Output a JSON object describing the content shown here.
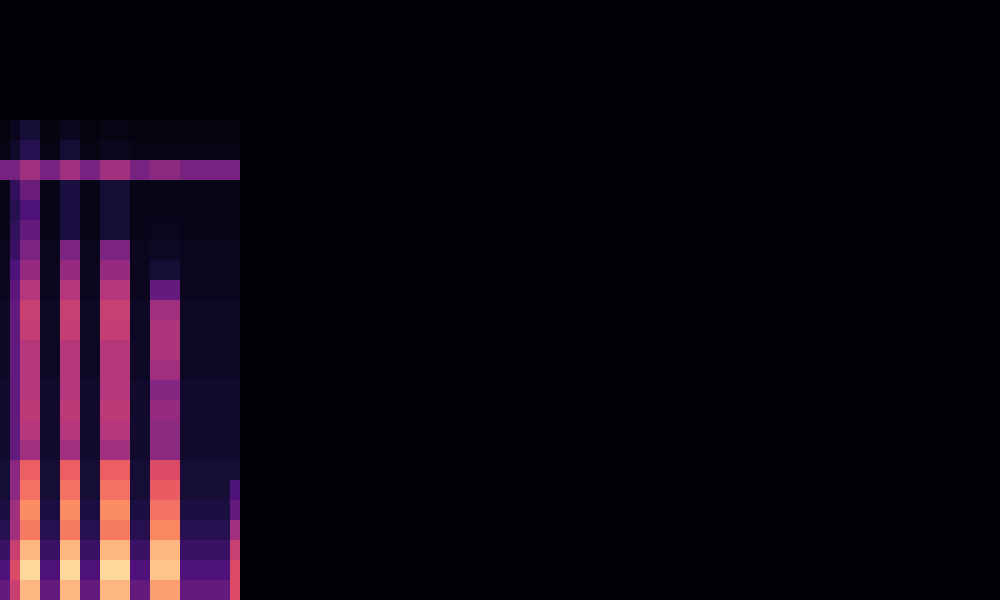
{
  "chart_data": {
    "type": "heatmap",
    "xlim": [
      0,
      100
    ],
    "ylim": [
      0,
      30
    ],
    "tick_labels": false,
    "grid": false,
    "color_range": [
      0,
      100
    ],
    "cells": [
      [
        30,
        55,
        85,
        85,
        30,
        30,
        85,
        85,
        30,
        30,
        85,
        85,
        85,
        30,
        30,
        80,
        80,
        80,
        30,
        30,
        30,
        30,
        30,
        60
      ],
      [
        25,
        60,
        92,
        92,
        25,
        25,
        92,
        92,
        25,
        25,
        92,
        92,
        92,
        25,
        25,
        88,
        88,
        88,
        25,
        25,
        25,
        25,
        25,
        60
      ],
      [
        20,
        55,
        85,
        85,
        20,
        20,
        85,
        85,
        20,
        20,
        85,
        85,
        85,
        20,
        20,
        85,
        85,
        85,
        20,
        20,
        20,
        20,
        20,
        55
      ],
      [
        15,
        45,
        72,
        72,
        15,
        15,
        72,
        72,
        15,
        15,
        72,
        72,
        72,
        15,
        15,
        75,
        75,
        75,
        15,
        15,
        15,
        15,
        15,
        45
      ],
      [
        12,
        45,
        76,
        76,
        12,
        12,
        76,
        76,
        12,
        12,
        76,
        76,
        76,
        12,
        12,
        70,
        70,
        70,
        12,
        12,
        12,
        12,
        12,
        30
      ],
      [
        10,
        40,
        70,
        70,
        10,
        10,
        70,
        70,
        10,
        10,
        70,
        70,
        70,
        10,
        10,
        65,
        65,
        65,
        10,
        10,
        10,
        10,
        10,
        25
      ],
      [
        10,
        40,
        66,
        66,
        10,
        10,
        66,
        66,
        10,
        10,
        66,
        66,
        66,
        10,
        10,
        60,
        60,
        60,
        10,
        10,
        10,
        10,
        10,
        10
      ],
      [
        8,
        30,
        45,
        45,
        8,
        8,
        45,
        45,
        8,
        8,
        45,
        45,
        45,
        8,
        8,
        40,
        40,
        40,
        8,
        8,
        8,
        8,
        8,
        8
      ],
      [
        8,
        30,
        50,
        50,
        8,
        8,
        50,
        50,
        8,
        8,
        50,
        50,
        50,
        8,
        8,
        40,
        40,
        40,
        8,
        8,
        8,
        8,
        8,
        8
      ],
      [
        8,
        30,
        52,
        52,
        8,
        8,
        52,
        52,
        8,
        8,
        52,
        52,
        52,
        8,
        8,
        42,
        42,
        42,
        8,
        8,
        8,
        8,
        8,
        8
      ],
      [
        8,
        30,
        50,
        50,
        8,
        8,
        50,
        50,
        8,
        8,
        50,
        50,
        50,
        8,
        8,
        38,
        38,
        38,
        8,
        8,
        8,
        8,
        8,
        8
      ],
      [
        6,
        30,
        50,
        50,
        6,
        6,
        50,
        50,
        6,
        6,
        50,
        50,
        50,
        6,
        6,
        45,
        45,
        45,
        6,
        6,
        6,
        6,
        6,
        6
      ],
      [
        6,
        30,
        50,
        50,
        6,
        6,
        50,
        50,
        6,
        6,
        50,
        50,
        50,
        6,
        6,
        48,
        48,
        48,
        6,
        6,
        6,
        6,
        6,
        6
      ],
      [
        6,
        30,
        54,
        54,
        6,
        6,
        54,
        54,
        6,
        6,
        54,
        54,
        54,
        6,
        6,
        48,
        48,
        48,
        6,
        6,
        6,
        6,
        6,
        6
      ],
      [
        6,
        30,
        55,
        55,
        6,
        6,
        55,
        55,
        6,
        6,
        55,
        55,
        55,
        6,
        6,
        45,
        45,
        45,
        6,
        6,
        6,
        6,
        6,
        6
      ],
      [
        5,
        28,
        50,
        50,
        5,
        5,
        50,
        50,
        5,
        5,
        50,
        50,
        50,
        5,
        5,
        30,
        30,
        30,
        5,
        5,
        5,
        5,
        5,
        5
      ],
      [
        5,
        25,
        42,
        42,
        5,
        5,
        42,
        42,
        5,
        5,
        42,
        42,
        42,
        5,
        5,
        10,
        10,
        10,
        5,
        5,
        5,
        5,
        5,
        5
      ],
      [
        5,
        20,
        36,
        36,
        5,
        5,
        36,
        36,
        5,
        5,
        36,
        36,
        36,
        5,
        5,
        6,
        6,
        6,
        5,
        5,
        5,
        5,
        5,
        5
      ],
      [
        4,
        18,
        30,
        30,
        4,
        4,
        12,
        12,
        4,
        4,
        10,
        10,
        10,
        4,
        4,
        5,
        5,
        5,
        4,
        4,
        4,
        4,
        4,
        4
      ],
      [
        4,
        15,
        25,
        25,
        4,
        4,
        12,
        12,
        4,
        4,
        10,
        10,
        10,
        4,
        4,
        4,
        4,
        4,
        4,
        4,
        4,
        4,
        4,
        4
      ],
      [
        4,
        18,
        32,
        32,
        4,
        4,
        12,
        12,
        4,
        4,
        10,
        10,
        10,
        4,
        4,
        4,
        4,
        4,
        4,
        4,
        4,
        4,
        4,
        4
      ],
      [
        35,
        35,
        45,
        45,
        35,
        35,
        45,
        45,
        35,
        35,
        45,
        45,
        45,
        35,
        35,
        40,
        40,
        40,
        35,
        35,
        35,
        35,
        35,
        35
      ],
      [
        3,
        8,
        15,
        15,
        3,
        3,
        10,
        10,
        3,
        3,
        5,
        5,
        5,
        3,
        3,
        3,
        3,
        3,
        3,
        3,
        3,
        3,
        3,
        3
      ],
      [
        2,
        5,
        10,
        10,
        2,
        2,
        5,
        5,
        2,
        2,
        3,
        3,
        3,
        2,
        2,
        2,
        2,
        2,
        2,
        2,
        2,
        2,
        2,
        2
      ]
    ]
  }
}
